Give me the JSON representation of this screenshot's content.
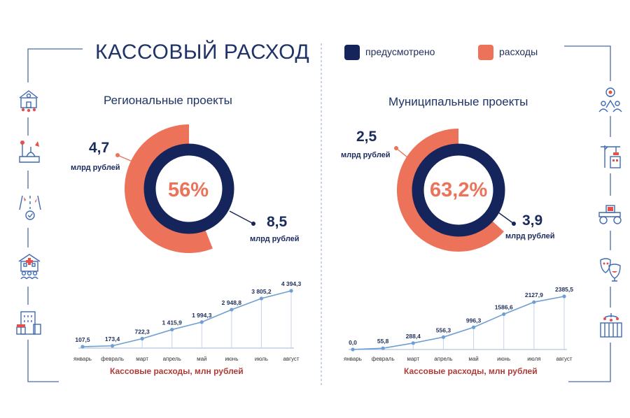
{
  "title": "КАССОВЫЙ РАСХОД",
  "legend": [
    {
      "label": "предусмотрено",
      "color": "#15245a"
    },
    {
      "label": "расходы",
      "color": "#ec7359"
    }
  ],
  "panels": [
    {
      "title": "Региональные проекты",
      "percent": "56%",
      "spent": {
        "value": "4,7",
        "unit": "млрд рублей"
      },
      "planned": {
        "value": "8,5",
        "unit": "млрд рублей"
      },
      "caption": "Кассовые расходы, млн рублей"
    },
    {
      "title": "Муниципальные проекты",
      "percent": "63,2%",
      "spent": {
        "value": "2,5",
        "unit": "млрд рублей"
      },
      "planned": {
        "value": "3,9",
        "unit": "млрд рублей"
      },
      "caption": "Кассовые расходы, млн рублей"
    }
  ],
  "chart_data": [
    {
      "type": "pie",
      "title": "Региональные проекты",
      "categories": [
        "предусмотрено",
        "расходы"
      ],
      "values": [
        8.5,
        4.7
      ],
      "share_percent": 56,
      "unit": "млрд рублей"
    },
    {
      "type": "line",
      "xlabel": "Кассовые расходы, млн рублей",
      "categories": [
        "январь",
        "февраль",
        "март",
        "апрель",
        "май",
        "июнь",
        "июль",
        "август"
      ],
      "values": [
        107.5,
        173.4,
        722.3,
        1415.9,
        1994.3,
        2948.8,
        3805.2,
        4394.3
      ],
      "value_labels": [
        "107,5",
        "173,4",
        "722,3",
        "1 415,9",
        "1 994,3",
        "2 948,8",
        "3 805,2",
        "4 394,3"
      ]
    },
    {
      "type": "pie",
      "title": "Муниципальные проекты",
      "categories": [
        "предусмотрено",
        "расходы"
      ],
      "values": [
        3.9,
        2.5
      ],
      "share_percent": 63.2,
      "unit": "млрд рублей"
    },
    {
      "type": "line",
      "xlabel": "Кассовые расходы, млн рублей",
      "categories": [
        "январь",
        "февраль",
        "март",
        "апрель",
        "май",
        "июнь",
        "июля",
        "август"
      ],
      "values": [
        0.0,
        55.8,
        288.4,
        556.3,
        996.3,
        1586.6,
        2127.9,
        2385.5
      ],
      "value_labels": [
        "0,0",
        "55,8",
        "288,4",
        "556,3",
        "996,3",
        "1586,6",
        "2127,9",
        "2385,5"
      ]
    }
  ],
  "colors": {
    "navy": "#15245a",
    "coral": "#ec7359",
    "line": "#6e9fd2",
    "frame": "#4e6aa3"
  },
  "icons": {
    "left": [
      "school-building-icon",
      "park-fountain-icon",
      "road-check-icon",
      "clinic-people-icon",
      "apartment-shop-icon"
    ],
    "right": [
      "idea-community-icon",
      "construction-crane-icon",
      "road-roller-icon",
      "theatre-masks-icon",
      "baby-crib-icon"
    ]
  }
}
